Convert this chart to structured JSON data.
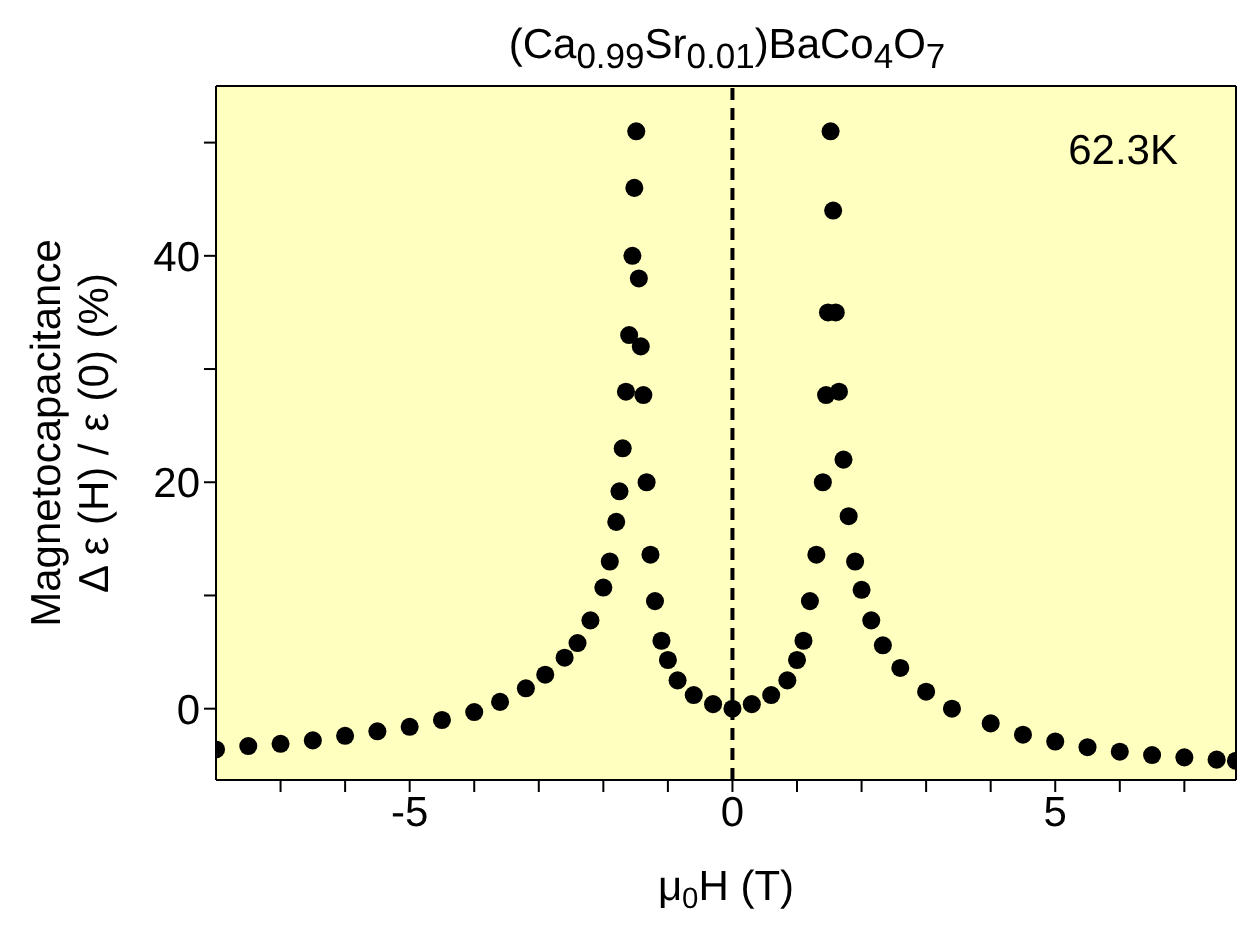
{
  "chart_data": {
    "type": "scatter",
    "title": "(Ca$_{0.99}$Sr$_{0.01}$)BaCo$_{4}$O$_{7}$",
    "xlabel": "μ$_{0}$H (T)",
    "ylabel": "Magnetocapacitance\nΔ ε (H) / ε (0) (%)",
    "annotations": [
      "62.3K"
    ],
    "x": [
      -8,
      -7.5,
      -7,
      -6.5,
      -6,
      -5.5,
      -5,
      -4.5,
      -4,
      -3.6,
      -3.2,
      -2.9,
      -2.6,
      -2.4,
      -2.2,
      -2.0,
      -1.9,
      -1.8,
      -1.75,
      -1.7,
      -1.65,
      -1.6,
      -1.55,
      -1.52,
      -1.49,
      -1.45,
      -1.42,
      -1.38,
      -1.33,
      -1.27,
      -1.2,
      -1.1,
      -1.0,
      -0.85,
      -0.6,
      -0.3,
      0,
      0.3,
      0.6,
      0.85,
      1.0,
      1.1,
      1.2,
      1.3,
      1.4,
      1.45,
      1.48,
      1.52,
      1.56,
      1.6,
      1.65,
      1.72,
      1.8,
      1.9,
      2.0,
      2.15,
      2.33,
      2.6,
      3.0,
      3.4,
      4.0,
      4.5,
      5.0,
      5.5,
      6.0,
      6.5,
      7.0,
      7.5,
      7.8
    ],
    "series": [
      {
        "color": "#000000",
        "values": [
          -3.6,
          -3.3,
          -3.1,
          -2.8,
          -2.4,
          -2.0,
          -1.6,
          -1.0,
          -0.3,
          0.6,
          1.8,
          3.0,
          4.5,
          5.8,
          7.8,
          10.7,
          13,
          16.5,
          19.2,
          23,
          28,
          33,
          40,
          46,
          51,
          38,
          32,
          27.7,
          20,
          13.6,
          9.5,
          6,
          4.3,
          2.5,
          1.2,
          0.4,
          0,
          0.4,
          1.2,
          2.5,
          4.3,
          6,
          9.5,
          13.6,
          20,
          27.7,
          35,
          51,
          44,
          35,
          28,
          22,
          17,
          13,
          10.5,
          7.8,
          5.6,
          3.6,
          1.5,
          0,
          -1.3,
          -2.3,
          -2.9,
          -3.4,
          -3.8,
          -4.1,
          -4.3,
          -4.5,
          -4.6
        ]
      }
    ],
    "marker": "circle",
    "xlim": [
      -8,
      7.8
    ],
    "ylim": [
      -6.3,
      55
    ],
    "xticks": [
      {
        "value": -7,
        "label": null
      },
      {
        "value": -6,
        "label": null
      },
      -5,
      {
        "value": -4,
        "label": null
      },
      {
        "value": -3,
        "label": null
      },
      {
        "value": -2,
        "label": null
      },
      {
        "value": -1,
        "label": null
      },
      0,
      {
        "value": 1,
        "label": null
      },
      {
        "value": 2,
        "label": null
      },
      {
        "value": 3,
        "label": null
      },
      {
        "value": 4,
        "label": null
      },
      5,
      {
        "value": 6,
        "label": null
      },
      {
        "value": 7,
        "label": null
      }
    ],
    "yticks": [
      0,
      {
        "value": 10,
        "label": null
      },
      20,
      {
        "value": 30,
        "label": null
      },
      40,
      {
        "value": 50,
        "label": null
      }
    ],
    "ref_lines": [
      {
        "axis": "x",
        "value": 0,
        "color": "#000000",
        "line_style": "dashed"
      }
    ],
    "grid": false
  }
}
